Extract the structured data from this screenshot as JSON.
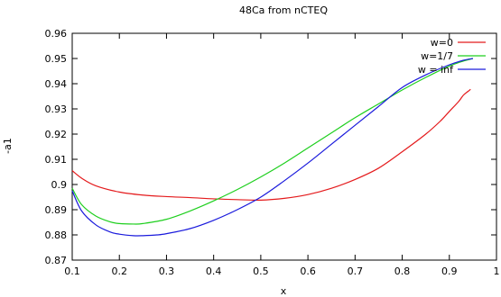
{
  "chart_data": {
    "type": "line",
    "title": "48Ca from nCTEQ",
    "xlabel": "x",
    "ylabel": "-a1",
    "xlim": [
      0.1,
      1.0
    ],
    "ylim": [
      0.87,
      0.96
    ],
    "xticks": [
      "0.1",
      "0.2",
      "0.3",
      "0.4",
      "0.5",
      "0.6",
      "0.7",
      "0.8",
      "0.9",
      "1"
    ],
    "yticks": [
      "0.87",
      "0.88",
      "0.89",
      "0.9",
      "0.91",
      "0.92",
      "0.93",
      "0.94",
      "0.95",
      "0.96"
    ],
    "grid": false,
    "legend_position": "top-right",
    "series": [
      {
        "name": "w=0",
        "color": "#e41a1c",
        "x": [
          0.1,
          0.12,
          0.15,
          0.2,
          0.25,
          0.3,
          0.35,
          0.4,
          0.45,
          0.5,
          0.55,
          0.6,
          0.65,
          0.7,
          0.75,
          0.8,
          0.85,
          0.88,
          0.9,
          0.92,
          0.93,
          0.94,
          0.945
        ],
        "y": [
          0.9055,
          0.9025,
          0.8995,
          0.897,
          0.8958,
          0.8952,
          0.8948,
          0.8943,
          0.894,
          0.8938,
          0.8945,
          0.896,
          0.8985,
          0.902,
          0.9065,
          0.913,
          0.92,
          0.925,
          0.929,
          0.933,
          0.9355,
          0.937,
          0.9378
        ]
      },
      {
        "name": "w=1/7",
        "color": "#1ecf1e",
        "x": [
          0.1,
          0.12,
          0.15,
          0.18,
          0.2,
          0.23,
          0.25,
          0.3,
          0.35,
          0.4,
          0.45,
          0.5,
          0.55,
          0.6,
          0.65,
          0.7,
          0.75,
          0.8,
          0.85,
          0.9,
          0.93,
          0.95
        ],
        "y": [
          0.8985,
          0.892,
          0.8875,
          0.8852,
          0.8845,
          0.8843,
          0.8845,
          0.8862,
          0.8895,
          0.8935,
          0.898,
          0.903,
          0.9085,
          0.9145,
          0.9205,
          0.9265,
          0.932,
          0.9375,
          0.9425,
          0.947,
          0.949,
          0.95
        ]
      },
      {
        "name": "w = inf",
        "color": "#1a1adc",
        "x": [
          0.1,
          0.12,
          0.15,
          0.18,
          0.2,
          0.23,
          0.25,
          0.28,
          0.3,
          0.35,
          0.4,
          0.45,
          0.5,
          0.55,
          0.6,
          0.65,
          0.7,
          0.75,
          0.8,
          0.85,
          0.9,
          0.93,
          0.95
        ],
        "y": [
          0.8975,
          0.8895,
          0.884,
          0.8812,
          0.8803,
          0.8797,
          0.8797,
          0.88,
          0.8805,
          0.8825,
          0.8858,
          0.89,
          0.895,
          0.9015,
          0.9085,
          0.916,
          0.9235,
          0.931,
          0.9385,
          0.9435,
          0.9475,
          0.9493,
          0.95
        ]
      }
    ]
  }
}
